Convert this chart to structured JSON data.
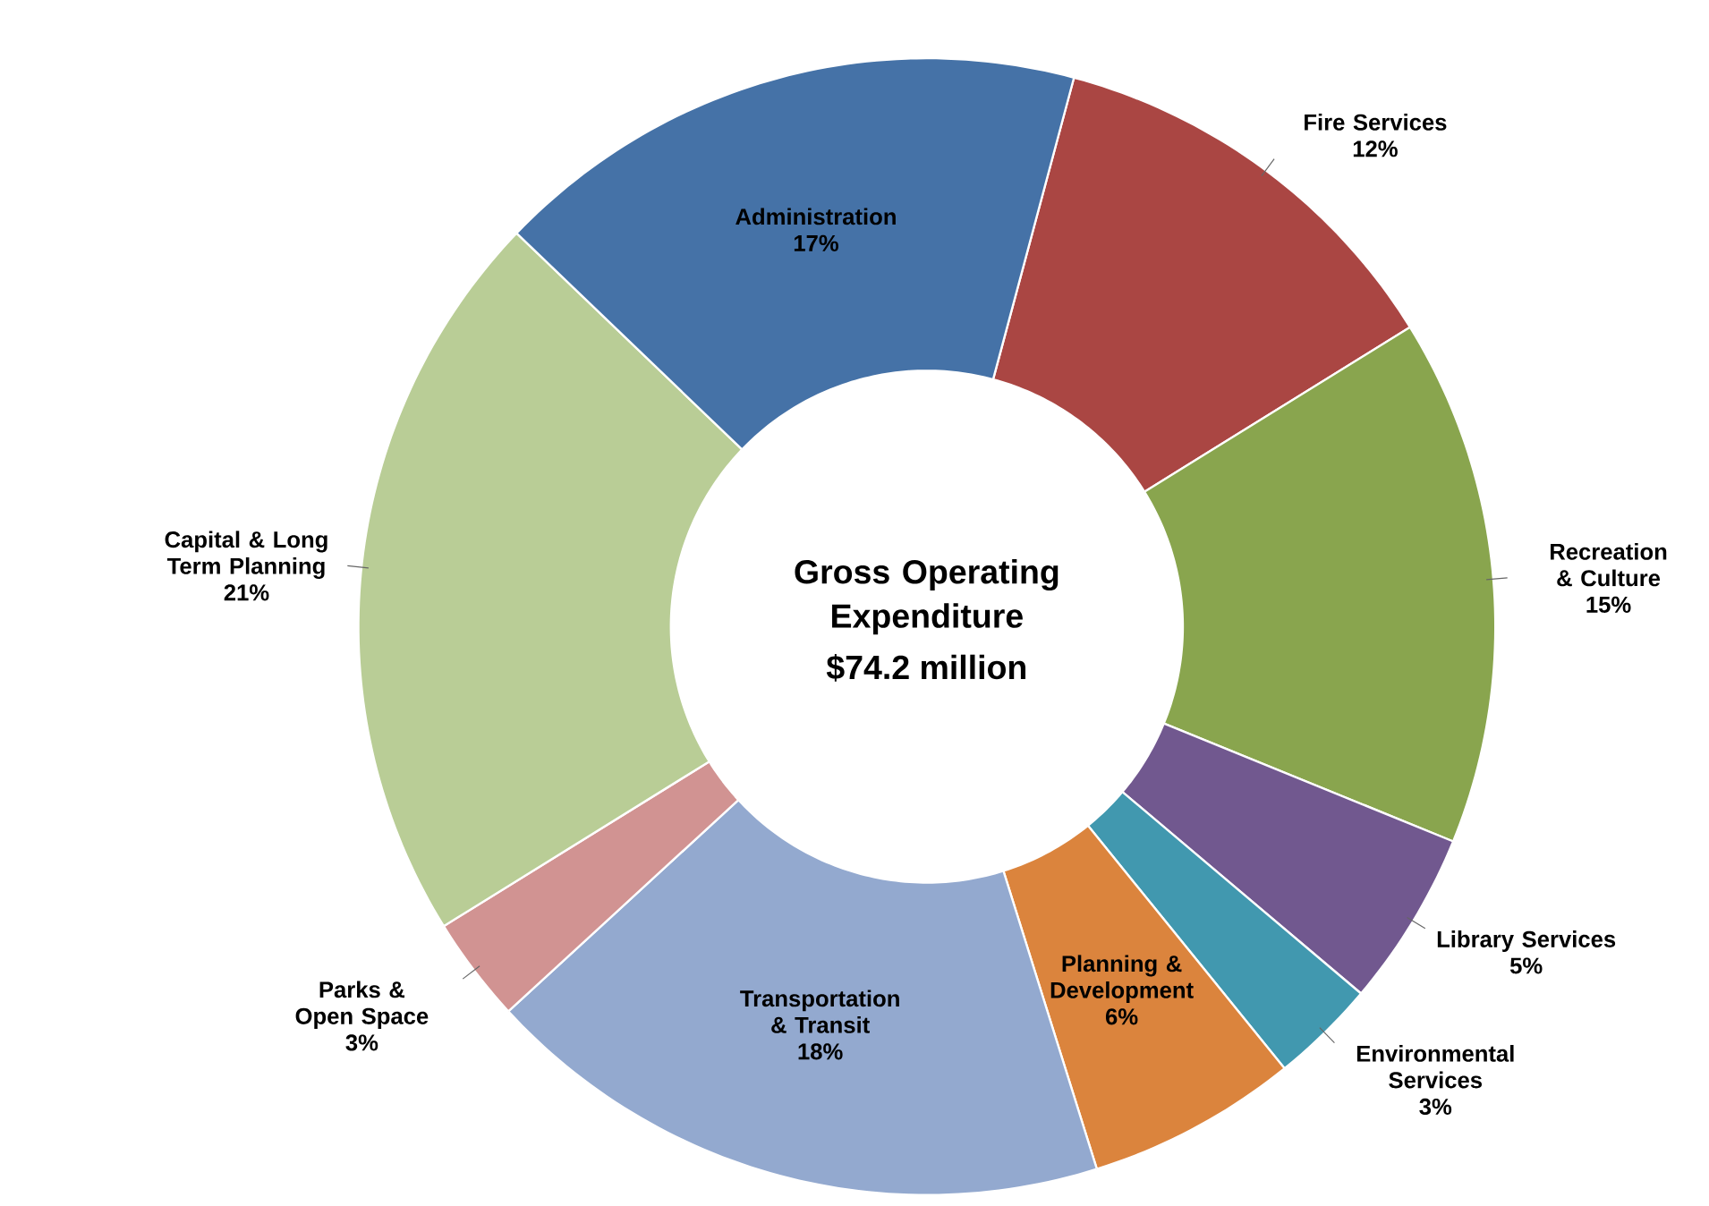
{
  "chart_data": {
    "type": "donut",
    "title": "Gross Operating Expenditure",
    "subtitle": "$74.2 million",
    "categories": [
      "Fire Services",
      "Recreation & Culture",
      "Library Services",
      "Environmental Services",
      "Planning & Development",
      "Transportation & Transit",
      "Parks & Open Space",
      "Capital & Long Term Planning",
      "Administration"
    ],
    "values": [
      12,
      15,
      5,
      3,
      6,
      18,
      3,
      21,
      17
    ],
    "value_labels": [
      "12%",
      "15%",
      "5%",
      "3%",
      "6%",
      "18%",
      "3%",
      "21%",
      "17%"
    ],
    "colors": [
      "#aa4643",
      "#89a54e",
      "#71588f",
      "#4198af",
      "#db843d",
      "#93a9cf",
      "#d19392",
      "#b9cd96",
      "#4572a7"
    ]
  }
}
